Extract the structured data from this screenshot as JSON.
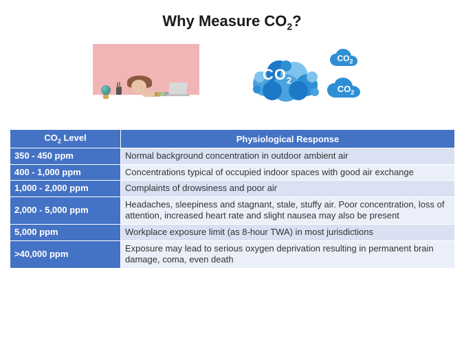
{
  "title_prefix": "Why Measure CO",
  "title_sub": "2",
  "title_suffix": "?",
  "co2_label_prefix": "CO",
  "co2_label_sub": "2",
  "colors": {
    "header_bg": "#4472c4",
    "level_bg": "#4472c4",
    "row_odd_bg": "#d9e1f2",
    "row_even_bg": "#eaeff9",
    "cloud_solid": "#2f8fd4",
    "cloud_bubble_a": "#1c79c7",
    "cloud_bubble_b": "#4aa3e0",
    "cloud_bubble_c": "#7fc3ec",
    "photo_bg": "#f2b5b5"
  },
  "table": {
    "header_level_prefix": "CO",
    "header_level_sub": "2",
    "header_level_suffix": " Level",
    "header_response": "Physiological Response",
    "col_level_width": 148,
    "rows": [
      {
        "level": "350 - 450 ppm",
        "response": "Normal background concentration in outdoor ambient air"
      },
      {
        "level": "400 - 1,000 ppm",
        "response": "Concentrations typical of occupied indoor spaces with good air exchange"
      },
      {
        "level": "1,000 - 2,000 ppm",
        "response": "Complaints of drowsiness and poor air"
      },
      {
        "level": "2,000 - 5,000 ppm",
        "response": "Headaches, sleepiness and stagnant, stale, stuffy air. Poor concentration, loss of attention, increased heart rate and slight nausea may also be present"
      },
      {
        "level": "5,000 ppm",
        "response": "Workplace exposure limit (as 8-hour TWA) in most jurisdictions"
      },
      {
        "level": ">40,000 ppm",
        "response": "Exposure may lead to serious oxygen deprivation resulting in permanent brain damage, coma, even death"
      }
    ]
  }
}
